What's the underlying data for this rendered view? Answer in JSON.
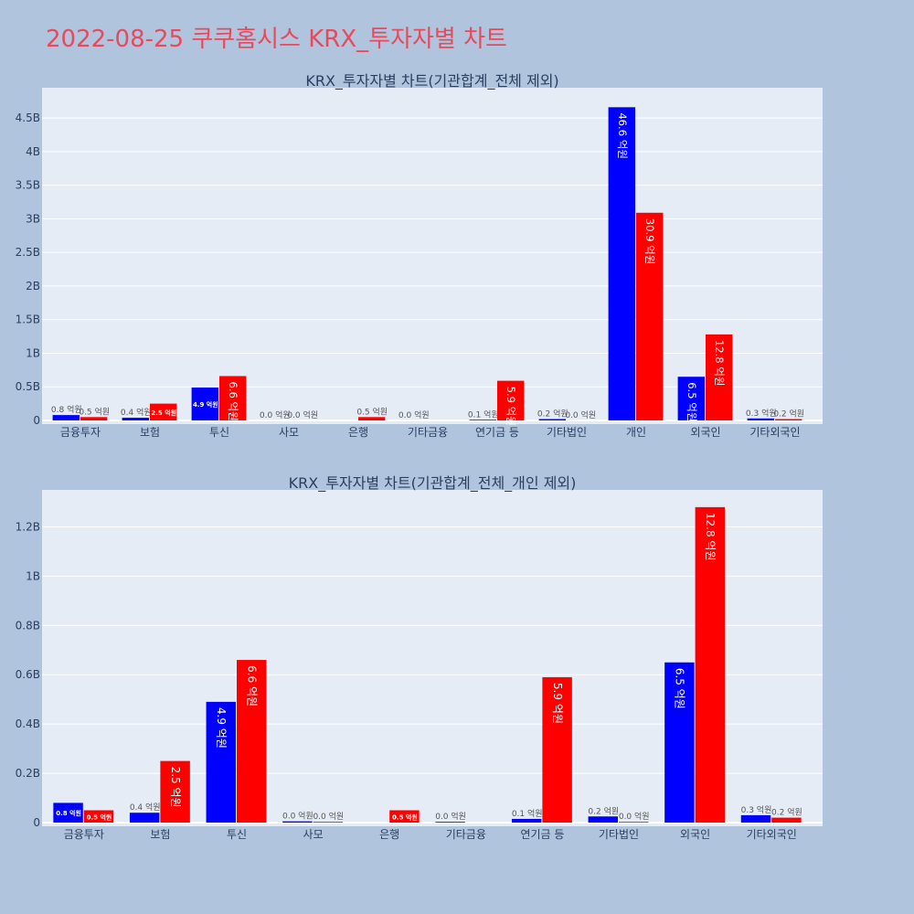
{
  "page_title": "2022-08-25 쿠쿠홈시스 KRX_투자자별 차트",
  "colors": {
    "background": "#b0c4de",
    "plot_bg": "#e5ecf6",
    "buy": "#0000ff",
    "sell": "#ff0000",
    "title": "#e8495b"
  },
  "chart_data": [
    {
      "type": "bar",
      "title": "KRX_투자자별 차트(기관합계_전체 제외)",
      "categories": [
        "금융투자",
        "보험",
        "투신",
        "사모",
        "은행",
        "기타금융",
        "연기금 등",
        "기타법인",
        "개인",
        "외국인",
        "기타외국인"
      ],
      "series": [
        {
          "color": "#0000ff",
          "values": [
            80000000,
            40000000,
            490000000,
            0,
            null,
            0,
            10000000,
            20000000,
            4660000000,
            650000000,
            30000000
          ],
          "labels": [
            "0.8 억원",
            "0.4 억원",
            "4.9 억원",
            "0.0 억원",
            "",
            "0.0 억원",
            "0.1 억원",
            "0.2 억원",
            "46.6 억원",
            "6.5 억원",
            "0.3 억원"
          ]
        },
        {
          "color": "#ff0000",
          "values": [
            50000000,
            250000000,
            660000000,
            0,
            50000000,
            null,
            590000000,
            0,
            3090000000,
            1280000000,
            20000000
          ],
          "labels": [
            "0.5 억원",
            "2.5 억원",
            "6.6 억원",
            "0.0 억원",
            "0.5 억원",
            "",
            "5.9 억원",
            "0.0 억원",
            "30.9 억원",
            "12.8 억원",
            "0.2 억원"
          ]
        }
      ],
      "yticks": [
        0,
        500000000,
        1000000000,
        1500000000,
        2000000000,
        2500000000,
        3000000000,
        3500000000,
        4000000000,
        4500000000
      ],
      "ytick_labels": [
        "0",
        "0.5B",
        "1B",
        "1.5B",
        "2B",
        "2.5B",
        "3B",
        "3.5B",
        "4B",
        "4.5B"
      ],
      "ylim": [
        0,
        4950000000
      ],
      "grid": true
    },
    {
      "type": "bar",
      "title": "KRX_투자자별 차트(기관합계_전체_개인 제외)",
      "categories": [
        "금융투자",
        "보험",
        "투신",
        "사모",
        "은행",
        "기타금융",
        "연기금 등",
        "기타법인",
        "외국인",
        "기타외국인"
      ],
      "series": [
        {
          "color": "#0000ff",
          "values": [
            80000000,
            40000000,
            490000000,
            5000000,
            null,
            3000000,
            15000000,
            25000000,
            650000000,
            30000000
          ],
          "labels": [
            "0.8 억원",
            "0.4 억원",
            "4.9 억원",
            "0.0 억원",
            "",
            "0.0 억원",
            "0.1 억원",
            "0.2 억원",
            "6.5 억원",
            "0.3 억원"
          ]
        },
        {
          "color": "#ff0000",
          "values": [
            50000000,
            250000000,
            660000000,
            3000000,
            50000000,
            null,
            590000000,
            3000000,
            1280000000,
            20000000
          ],
          "labels": [
            "0.5 억원",
            "2.5 억원",
            "6.6 억원",
            "0.0 억원",
            "0.5 억원",
            "",
            "5.9 억원",
            "0.0 억원",
            "12.8 억원",
            "0.2 억원"
          ]
        }
      ],
      "yticks": [
        0,
        200000000,
        400000000,
        600000000,
        800000000,
        1000000000,
        1200000000
      ],
      "ytick_labels": [
        "0",
        "0.2B",
        "0.4B",
        "0.6B",
        "0.8B",
        "1B",
        "1.2B"
      ],
      "ylim": [
        0,
        1350000000
      ],
      "grid": true
    }
  ]
}
